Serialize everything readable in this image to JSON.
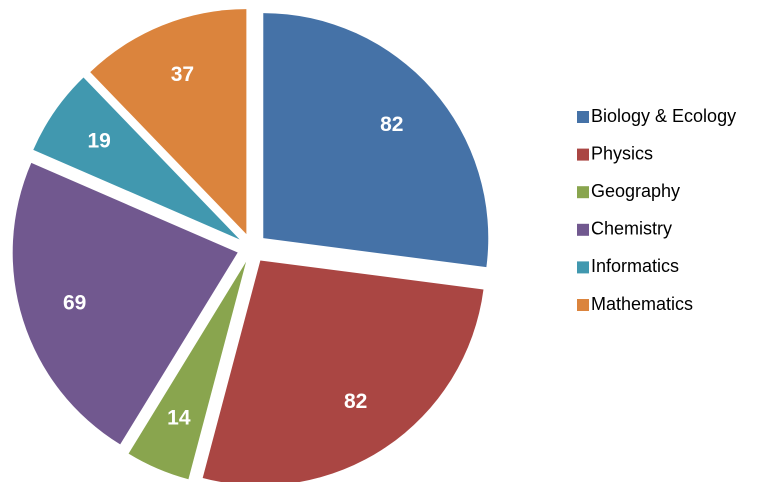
{
  "chart_data": {
    "type": "pie",
    "categories": [
      "Biology & Ecology",
      "Physics",
      "Geography",
      "Chemistry",
      "Informatics",
      "Mathematics"
    ],
    "values": [
      82,
      82,
      14,
      69,
      19,
      37
    ],
    "colors": [
      "#4572a7",
      "#aa4643",
      "#89a54e",
      "#71588f",
      "#4198af",
      "#db843d"
    ],
    "legend": "right"
  }
}
